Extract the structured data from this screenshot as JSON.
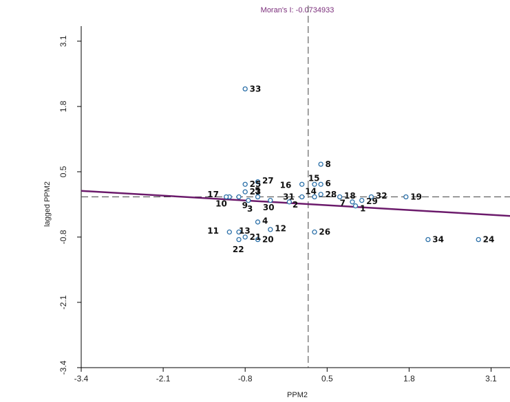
{
  "chart_data": {
    "type": "scatter",
    "title": "Moran's I: -0.0734933",
    "xlabel": "PPM2",
    "ylabel": "lagged PPM2",
    "xlim": [
      -3.4,
      3.4
    ],
    "ylim": [
      -3.4,
      3.4
    ],
    "xticks": [
      "-3.4",
      "-2.1",
      "-0.8",
      "0.5",
      "1.8",
      "3.1"
    ],
    "yticks": [
      "-3.4",
      "-2.1",
      "-0.8",
      "0.5",
      "1.8",
      "3.1"
    ],
    "vline_x": 0.2,
    "hline_y": 0.0,
    "regression": {
      "x1": -3.4,
      "y1": 0.12,
      "x2": 3.4,
      "y2": -0.38,
      "color": "#6b1a6b"
    },
    "point_color": "#2a6fa8",
    "points": [
      {
        "id": "1",
        "x": 0.95,
        "y": -0.18,
        "lx": 0.07,
        "ly": -0.05
      },
      {
        "id": "2",
        "x": -0.1,
        "y": -0.1,
        "lx": 0.05,
        "ly": -0.06
      },
      {
        "id": "3",
        "x": -0.75,
        "y": -0.07,
        "lx": -0.02,
        "ly": -0.17
      },
      {
        "id": "4",
        "x": -0.6,
        "y": -0.5,
        "lx": 0.07,
        "ly": 0.02
      },
      {
        "id": "5",
        "x": -0.6,
        "y": 0.0,
        "lx": -0.05,
        "ly": 0.12
      },
      {
        "id": "6",
        "x": 0.4,
        "y": 0.25,
        "lx": 0.07,
        "ly": 0.02
      },
      {
        "id": "7",
        "x": 0.9,
        "y": -0.1,
        "lx": -0.2,
        "ly": -0.02
      },
      {
        "id": "8",
        "x": 0.4,
        "y": 0.65,
        "lx": 0.07,
        "ly": 0.0
      },
      {
        "id": "9",
        "x": -0.9,
        "y": 0.0,
        "lx": 0.05,
        "ly": -0.17
      },
      {
        "id": "10",
        "x": -1.05,
        "y": 0.0,
        "lx": -0.22,
        "ly": -0.14
      },
      {
        "id": "11",
        "x": -1.05,
        "y": -0.7,
        "lx": -0.35,
        "ly": 0.02
      },
      {
        "id": "12",
        "x": -0.4,
        "y": -0.65,
        "lx": 0.07,
        "ly": 0.02
      },
      {
        "id": "13",
        "x": -0.9,
        "y": -0.7,
        "lx": 0.0,
        "ly": 0.02
      },
      {
        "id": "14",
        "x": 0.3,
        "y": 0.0,
        "lx": -0.15,
        "ly": 0.11
      },
      {
        "id": "15",
        "x": 0.3,
        "y": 0.25,
        "lx": -0.1,
        "ly": 0.12
      },
      {
        "id": "16",
        "x": 0.1,
        "y": 0.25,
        "lx": -0.35,
        "ly": -0.02
      },
      {
        "id": "17",
        "x": -1.1,
        "y": 0.0,
        "lx": -0.3,
        "ly": 0.05
      },
      {
        "id": "18",
        "x": 0.7,
        "y": 0.0,
        "lx": 0.07,
        "ly": 0.02
      },
      {
        "id": "19",
        "x": 1.75,
        "y": 0.0,
        "lx": 0.07,
        "ly": 0.0
      },
      {
        "id": "20",
        "x": -0.6,
        "y": -0.85,
        "lx": 0.07,
        "ly": 0.0
      },
      {
        "id": "21",
        "x": -0.8,
        "y": -0.8,
        "lx": 0.07,
        "ly": 0.0
      },
      {
        "id": "22",
        "x": -0.9,
        "y": -0.85,
        "lx": -0.1,
        "ly": -0.2
      },
      {
        "id": "23",
        "x": -0.8,
        "y": 0.1,
        "lx": 0.07,
        "ly": 0.0
      },
      {
        "id": "24",
        "x": 2.9,
        "y": -0.85,
        "lx": 0.07,
        "ly": 0.0
      },
      {
        "id": "25",
        "x": -0.8,
        "y": 0.25,
        "lx": 0.07,
        "ly": 0.0
      },
      {
        "id": "26",
        "x": 0.3,
        "y": -0.7,
        "lx": 0.07,
        "ly": 0.0
      },
      {
        "id": "27",
        "x": -0.6,
        "y": 0.3,
        "lx": 0.07,
        "ly": 0.02
      },
      {
        "id": "28",
        "x": 0.4,
        "y": 0.05,
        "lx": 0.07,
        "ly": 0.0
      },
      {
        "id": "29",
        "x": 1.05,
        "y": -0.07,
        "lx": 0.07,
        "ly": -0.02
      },
      {
        "id": "30",
        "x": -0.4,
        "y": -0.07,
        "lx": -0.12,
        "ly": -0.14
      },
      {
        "id": "31",
        "x": 0.1,
        "y": 0.0,
        "lx": -0.3,
        "ly": 0.0
      },
      {
        "id": "32",
        "x": 1.2,
        "y": 0.0,
        "lx": 0.07,
        "ly": 0.02
      },
      {
        "id": "33",
        "x": -0.8,
        "y": 2.15,
        "lx": 0.07,
        "ly": 0.0
      },
      {
        "id": "34",
        "x": 2.1,
        "y": -0.85,
        "lx": 0.07,
        "ly": 0.0
      }
    ]
  }
}
